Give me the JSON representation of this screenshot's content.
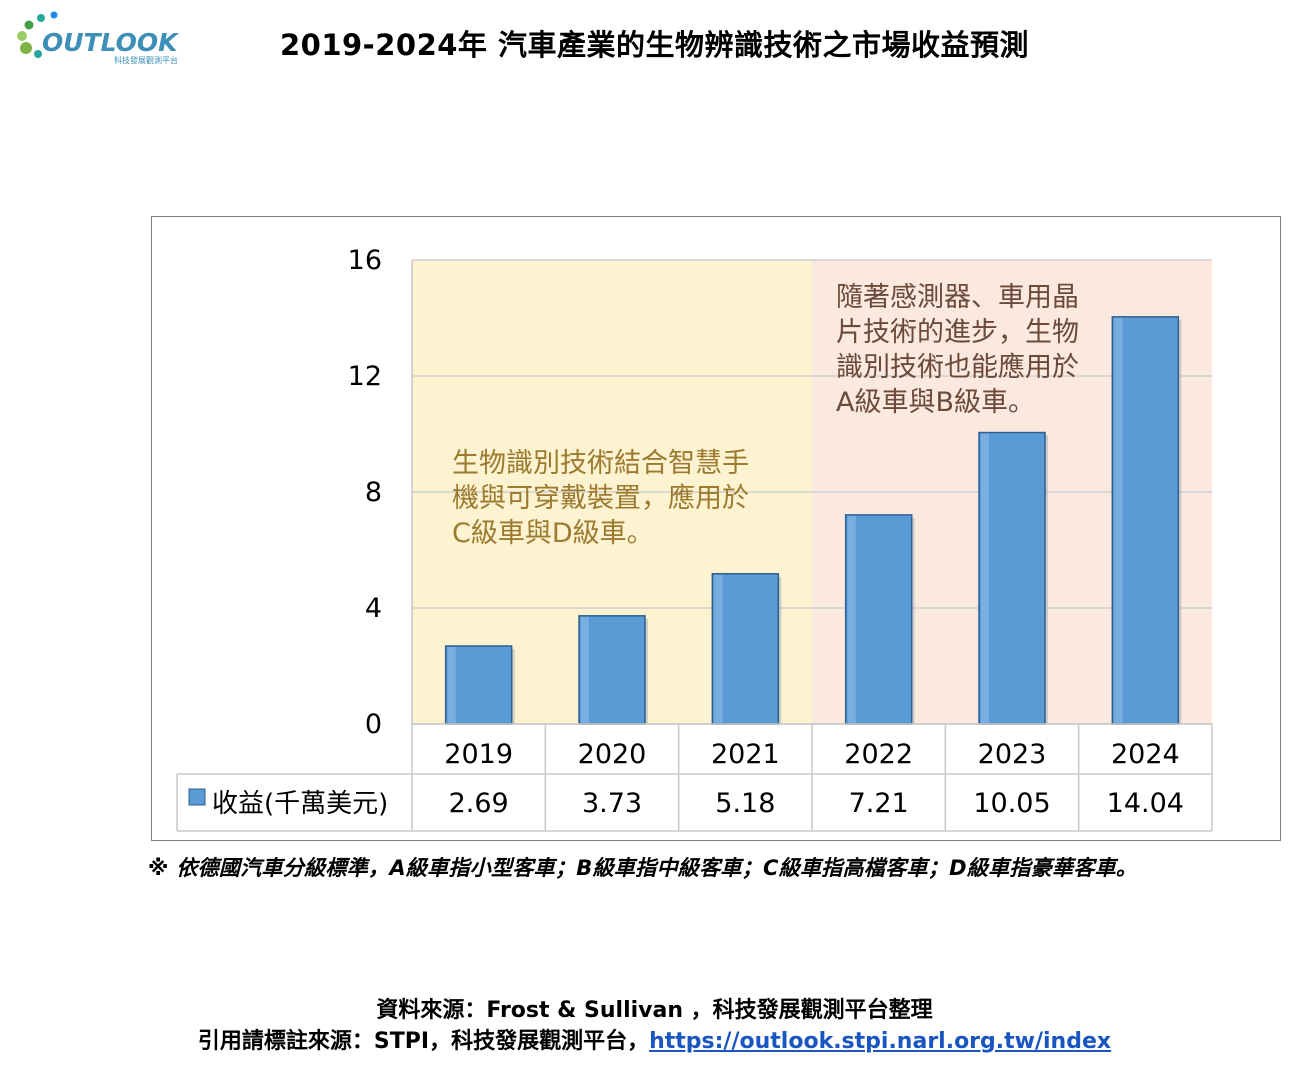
{
  "header": {
    "logo_text": "OUTLOOK",
    "logo_subtext": "科技發展觀測平台",
    "title": "2019-2024年 汽車產業的生物辨識技術之市場收益預測"
  },
  "chart_data": {
    "type": "bar",
    "categories": [
      "2019",
      "2020",
      "2021",
      "2022",
      "2023",
      "2024"
    ],
    "series": [
      {
        "name": "收益(千萬美元)",
        "values": [
          2.69,
          3.73,
          5.18,
          7.21,
          10.05,
          14.04
        ],
        "color": "#5b9bd5"
      }
    ],
    "ylim": [
      0,
      16
    ],
    "yticks": [
      "0",
      "4",
      "8",
      "12",
      "16"
    ],
    "grid": true,
    "data_table": true,
    "value_labels": [
      "2.69",
      "3.73",
      "5.18",
      "7.21",
      "10.05",
      "14.04"
    ],
    "regions": [
      {
        "from": "2019",
        "to": "2021",
        "color": "#fdf3d0",
        "annotation": [
          "生物識別技術結合智慧手",
          "機與可穿戴裝置，應用於",
          "C級車與D級車。"
        ],
        "text_color": "#9c7a30"
      },
      {
        "from": "2022",
        "to": "2024",
        "color": "#fbe8df",
        "annotation": [
          "隨著感測器、車用晶",
          "片技術的進步，生物",
          "識別技術也能應用於",
          "A級車與B級車。"
        ],
        "text_color": "#6b4a3a"
      }
    ]
  },
  "footnote": "※ 依德國汽車分級標準，A級車指小型客車；B級車指中級客車；C級車指高檔客車；D級車指豪華客車。",
  "source": {
    "line1": "資料來源：Frost & Sullivan ，科技發展觀測平台整理",
    "line2_prefix": "引用請標註來源：STPI，科技發展觀測平台，",
    "link": "https://outlook.stpi.narl.org.tw/index"
  }
}
